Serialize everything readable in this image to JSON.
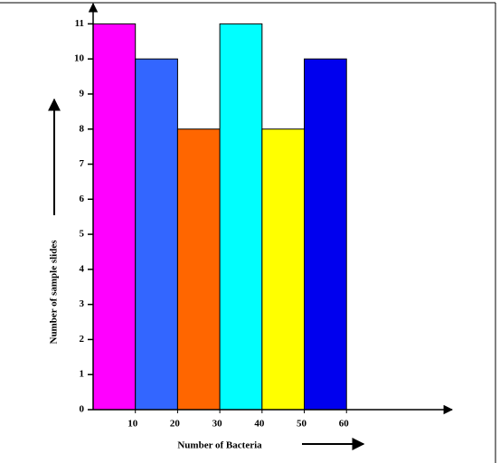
{
  "chart_data": {
    "type": "histogram",
    "xlabel": "Number of Bacteria",
    "ylabel": "Number of sample slides",
    "bins": [
      0,
      10,
      20,
      30,
      40,
      50,
      60
    ],
    "counts": [
      11,
      10,
      8,
      11,
      8,
      10
    ],
    "colors": [
      "#ff00ff",
      "#3366ff",
      "#ff6600",
      "#00ffff",
      "#ffff00",
      "#0000ee"
    ],
    "xlim": [
      0,
      85
    ],
    "ylim": [
      0,
      11.5
    ],
    "xticks": [
      10,
      20,
      30,
      40,
      50,
      60
    ],
    "yticks": [
      0,
      1,
      2,
      3,
      4,
      5,
      6,
      7,
      8,
      9,
      10,
      11
    ]
  }
}
